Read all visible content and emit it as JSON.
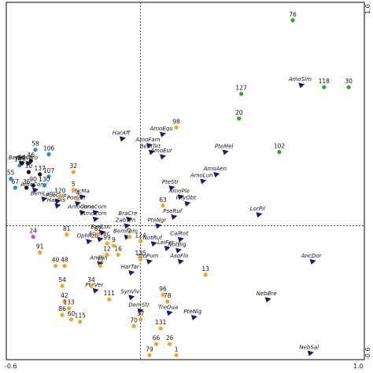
{
  "chart_data": {
    "type": "scatter",
    "title": "",
    "xlabel": "",
    "ylabel": "",
    "xlim": [
      -0.6,
      1.0
    ],
    "ylim": [
      -0.6,
      1.0
    ],
    "grid": false,
    "zero_lines": true,
    "tick_labels": {
      "x_left": "-0.6",
      "x_right": "1.0",
      "y_top": "1.0",
      "y_bottom": "-0.6"
    },
    "colors": {
      "black": "#111111",
      "blue": "#1a8fe0",
      "magenta": "#e040c8",
      "orange": "#f5a51c",
      "green": "#2aa82a",
      "species": "#1a1a6e"
    },
    "sites": [
      {
        "label": "76",
        "x": 0.68,
        "y": 0.92,
        "group": "green"
      },
      {
        "label": "118",
        "x": 0.82,
        "y": 0.62,
        "group": "green"
      },
      {
        "label": "30",
        "x": 0.93,
        "y": 0.62,
        "group": "green"
      },
      {
        "label": "127",
        "x": 0.45,
        "y": 0.59,
        "group": "green"
      },
      {
        "label": "20",
        "x": 0.44,
        "y": 0.48,
        "group": "green"
      },
      {
        "label": "102",
        "x": 0.62,
        "y": 0.33,
        "group": "green"
      },
      {
        "label": "98",
        "x": 0.16,
        "y": 0.44,
        "group": "orange"
      },
      {
        "label": "58",
        "x": -0.47,
        "y": 0.34,
        "group": "blue"
      },
      {
        "label": "106",
        "x": -0.41,
        "y": 0.32,
        "group": "blue"
      },
      {
        "label": "143",
        "x": -0.54,
        "y": 0.27,
        "group": "blue"
      },
      {
        "label": "55",
        "x": -0.58,
        "y": 0.21,
        "group": "blue"
      },
      {
        "label": "107",
        "x": -0.41,
        "y": 0.22,
        "group": "blue"
      },
      {
        "label": "130",
        "x": -0.43,
        "y": 0.18,
        "group": "blue"
      },
      {
        "label": "32",
        "x": -0.3,
        "y": 0.24,
        "group": "orange"
      },
      {
        "label": "94",
        "x": -0.53,
        "y": 0.28,
        "group": "black"
      },
      {
        "label": "46",
        "x": -0.49,
        "y": 0.29,
        "group": "black"
      },
      {
        "label": "10",
        "x": -0.5,
        "y": 0.24,
        "group": "black"
      },
      {
        "label": "137",
        "x": -0.45,
        "y": 0.23,
        "group": "black"
      },
      {
        "label": "90",
        "x": -0.48,
        "y": 0.18,
        "group": "black"
      },
      {
        "label": "36",
        "x": -0.51,
        "y": 0.17,
        "group": "black"
      },
      {
        "label": "67",
        "x": -0.56,
        "y": 0.17,
        "group": "blue"
      },
      {
        "label": "24",
        "x": -0.48,
        "y": -0.05,
        "group": "magenta"
      },
      {
        "label": "120",
        "x": -0.36,
        "y": 0.13,
        "group": "orange"
      },
      {
        "label": "5",
        "x": -0.3,
        "y": 0.16,
        "group": "orange"
      },
      {
        "label": "4",
        "x": -0.28,
        "y": 0.12,
        "group": "orange"
      },
      {
        "label": "63",
        "x": 0.1,
        "y": 0.09,
        "group": "orange"
      },
      {
        "label": "81",
        "x": -0.33,
        "y": -0.04,
        "group": "orange"
      },
      {
        "label": "91",
        "x": -0.45,
        "y": -0.12,
        "group": "orange"
      },
      {
        "label": "40",
        "x": -0.38,
        "y": -0.18,
        "group": "orange"
      },
      {
        "label": "48",
        "x": -0.34,
        "y": -0.18,
        "group": "orange"
      },
      {
        "label": "54",
        "x": -0.35,
        "y": -0.27,
        "group": "orange"
      },
      {
        "label": "42",
        "x": -0.34,
        "y": -0.34,
        "group": "orange"
      },
      {
        "label": "133",
        "x": -0.32,
        "y": -0.37,
        "group": "orange"
      },
      {
        "label": "86",
        "x": -0.35,
        "y": -0.4,
        "group": "orange"
      },
      {
        "label": "60",
        "x": -0.31,
        "y": -0.42,
        "group": "orange"
      },
      {
        "label": "115",
        "x": -0.27,
        "y": -0.43,
        "group": "orange"
      },
      {
        "label": "34",
        "x": -0.22,
        "y": -0.27,
        "group": "orange"
      },
      {
        "label": "111",
        "x": -0.14,
        "y": -0.33,
        "group": "orange"
      },
      {
        "label": "37",
        "x": 0.0,
        "y": -0.42,
        "group": "orange"
      },
      {
        "label": "70",
        "x": -0.03,
        "y": -0.45,
        "group": "orange"
      },
      {
        "label": "66",
        "x": 0.07,
        "y": -0.53,
        "group": "orange"
      },
      {
        "label": "131",
        "x": 0.09,
        "y": -0.46,
        "group": "orange"
      },
      {
        "label": "26",
        "x": 0.13,
        "y": -0.53,
        "group": "orange"
      },
      {
        "label": "79",
        "x": 0.04,
        "y": -0.58,
        "group": "orange"
      },
      {
        "label": "1",
        "x": 0.16,
        "y": -0.58,
        "group": "orange"
      },
      {
        "label": "96",
        "x": 0.1,
        "y": -0.31,
        "group": "orange"
      },
      {
        "label": "78",
        "x": 0.12,
        "y": -0.34,
        "group": "orange"
      },
      {
        "label": "13",
        "x": 0.29,
        "y": -0.22,
        "group": "orange"
      },
      {
        "label": "12",
        "x": -0.15,
        "y": -0.13,
        "group": "orange"
      },
      {
        "label": "16",
        "x": -0.1,
        "y": -0.13,
        "group": "orange"
      },
      {
        "label": "9",
        "x": -0.12,
        "y": -0.09,
        "group": "orange"
      },
      {
        "label": "62",
        "x": -0.19,
        "y": -0.04,
        "group": "orange"
      },
      {
        "label": "124",
        "x": 0.0,
        "y": -0.07,
        "group": "orange"
      },
      {
        "label": "99",
        "x": -0.15,
        "y": -0.08,
        "group": "orange"
      },
      {
        "label": "72",
        "x": -0.18,
        "y": -0.18,
        "group": "orange"
      },
      {
        "label": "135",
        "x": 0.0,
        "y": -0.15,
        "group": "orange"
      },
      {
        "label": "2",
        "x": -0.05,
        "y": -0.05,
        "group": "orange"
      }
    ],
    "species": [
      {
        "label": "AmoSim",
        "x": 0.72,
        "y": 0.63
      },
      {
        "label": "HarAff",
        "x": -0.08,
        "y": 0.39
      },
      {
        "label": "AmoEqu",
        "x": 0.1,
        "y": 0.41
      },
      {
        "label": "BemTet",
        "x": 0.05,
        "y": 0.33
      },
      {
        "label": "PteMel",
        "x": 0.38,
        "y": 0.33
      },
      {
        "label": "AmoFam",
        "x": 0.04,
        "y": 0.36
      },
      {
        "label": "AmoEur",
        "x": 0.1,
        "y": 0.31
      },
      {
        "label": "AmoAen",
        "x": 0.34,
        "y": 0.23
      },
      {
        "label": "AmoLun",
        "x": 0.28,
        "y": 0.2
      },
      {
        "label": "BemPro",
        "x": -0.5,
        "y": 0.28
      },
      {
        "label": "BemQua",
        "x": -0.53,
        "y": 0.28
      },
      {
        "label": "AmoConv",
        "x": -0.47,
        "y": 0.16
      },
      {
        "label": "BemLam",
        "x": -0.43,
        "y": 0.12
      },
      {
        "label": "PoeCup",
        "x": -0.37,
        "y": 0.11
      },
      {
        "label": "HarDis",
        "x": -0.37,
        "y": 0.09
      },
      {
        "label": "PoeVer",
        "x": -0.28,
        "y": 0.1
      },
      {
        "label": "MicMa",
        "x": -0.26,
        "y": 0.13
      },
      {
        "label": "AmoCom",
        "x": -0.2,
        "y": 0.06
      },
      {
        "label": "AmoCons",
        "x": -0.26,
        "y": 0.06
      },
      {
        "label": "PteStr",
        "x": 0.14,
        "y": 0.17
      },
      {
        "label": "AmoPle",
        "x": 0.18,
        "y": 0.13
      },
      {
        "label": "PhyObt",
        "x": 0.21,
        "y": 0.1
      },
      {
        "label": "PseRuf",
        "x": 0.15,
        "y": 0.04
      },
      {
        "label": "BraCre",
        "x": -0.05,
        "y": 0.03
      },
      {
        "label": "LorPil",
        "x": 0.53,
        "y": 0.05
      },
      {
        "label": "ZabTen",
        "x": -0.06,
        "y": 0.0
      },
      {
        "label": "PteNgr",
        "x": 0.08,
        "y": 0.0
      },
      {
        "label": "BadLoc",
        "x": -0.17,
        "y": -0.03
      },
      {
        "label": "BemFem",
        "x": -0.06,
        "y": -0.05
      },
      {
        "label": "CalRot",
        "x": 0.18,
        "y": -0.06
      },
      {
        "label": "OphAzu",
        "x": -0.23,
        "y": -0.07
      },
      {
        "label": "NotRuf",
        "x": 0.06,
        "y": -0.08
      },
      {
        "label": "NotBig",
        "x": 0.17,
        "y": -0.11
      },
      {
        "label": "LeiFer",
        "x": 0.12,
        "y": -0.1
      },
      {
        "label": "AmoCons2",
        "x": -0.18,
        "y": -0.06
      },
      {
        "label": "StoPum",
        "x": 0.04,
        "y": -0.16
      },
      {
        "label": "AsoFlo",
        "x": 0.18,
        "y": -0.16
      },
      {
        "label": "AniBin",
        "x": -0.18,
        "y": -0.17
      },
      {
        "label": "AncDor",
        "x": 0.77,
        "y": -0.16
      },
      {
        "label": "HarTar",
        "x": -0.04,
        "y": -0.21
      },
      {
        "label": "PteVer",
        "x": -0.2,
        "y": -0.29
      },
      {
        "label": "SynViv",
        "x": -0.04,
        "y": -0.32
      },
      {
        "label": "DemStr",
        "x": 0.0,
        "y": -0.38
      },
      {
        "label": "TreQua",
        "x": 0.13,
        "y": -0.39
      },
      {
        "label": "PteNig",
        "x": 0.24,
        "y": -0.41
      },
      {
        "label": "NebBre",
        "x": 0.57,
        "y": -0.33
      },
      {
        "label": "NebSal",
        "x": 0.76,
        "y": -0.57
      },
      {
        "label": "AmoLun2",
        "x": -0.2,
        "y": 0.03
      }
    ],
    "species_display_labels": {
      "AmoCons2": "AcuMer",
      "AmoLun2": "AmoCom"
    }
  }
}
